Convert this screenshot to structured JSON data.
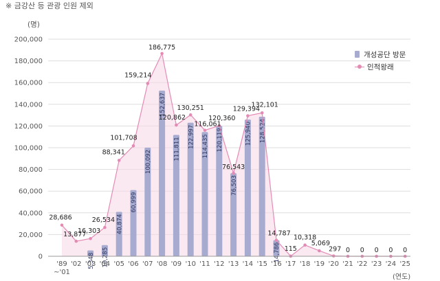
{
  "header": {
    "note": "※ 금강산 등 관광 인원 제외",
    "y_unit": "(명)",
    "x_unit": "(연도)"
  },
  "legend": {
    "bar_label": "개성공단 방문",
    "line_label": "인적왕래"
  },
  "colors": {
    "bar": "#a7abcf",
    "line": "#e48bb5",
    "area": "#f7d7e6",
    "grid": "#dddddd"
  },
  "chart_data": {
    "type": "bar",
    "categories": [
      "'89\n~'01",
      "'02",
      "'03",
      "'04",
      "'05",
      "'06",
      "'07",
      "'08",
      "'09",
      "'10",
      "'11",
      "'12",
      "'13",
      "'14",
      "'15",
      "'16",
      "'17",
      "'18",
      "'19",
      "'20",
      "'21",
      "'22",
      "'23",
      "'24",
      "'25"
    ],
    "ylim": [
      0,
      200000
    ],
    "yticks": [
      0,
      20000,
      40000,
      60000,
      80000,
      100000,
      120000,
      140000,
      160000,
      180000,
      200000
    ],
    "ytick_labels": [
      "0",
      "20,000",
      "40,000",
      "60,000",
      "80,000",
      "100,000",
      "120,000",
      "140,000",
      "160,000",
      "180,000",
      "200,000"
    ],
    "grid": true,
    "legend_position": "top-right",
    "series": [
      {
        "name": "개성공단 방문",
        "type": "bar",
        "values": [
          null,
          null,
          5348,
          10285,
          40874,
          60999,
          100092,
          152637,
          111811,
          122997,
          114435,
          120119,
          76503,
          125940,
          128524,
          14786,
          null,
          null,
          null,
          null,
          null,
          null,
          null,
          null,
          null
        ],
        "labels": [
          "",
          "",
          "5,348",
          "10,285",
          "40,874",
          "60,999",
          "100,092",
          "152,637",
          "111,811",
          "122,997",
          "114,435",
          "120,119",
          "76,503",
          "125,940",
          "128,524",
          "14,786",
          "",
          "",
          "",
          "",
          "",
          "",
          "",
          "",
          ""
        ]
      },
      {
        "name": "인적왕래",
        "type": "line",
        "values": [
          28686,
          13877,
          16303,
          26534,
          88341,
          101708,
          159214,
          186775,
          120862,
          130251,
          116061,
          120360,
          76543,
          129394,
          132101,
          14787,
          115,
          10318,
          5069,
          297,
          0,
          0,
          0,
          0,
          0
        ],
        "labels": [
          "28,686",
          "13,877",
          "16,303",
          "26,534",
          "88,341",
          "101,708",
          "159,214",
          "186,775",
          "120,862",
          "130,251",
          "116,061",
          "120,360",
          "76,543",
          "129,394",
          "132,101",
          "14,787",
          "115",
          "10,318",
          "5,069",
          "297",
          "0",
          "0",
          "0",
          "0",
          "0"
        ]
      }
    ]
  }
}
